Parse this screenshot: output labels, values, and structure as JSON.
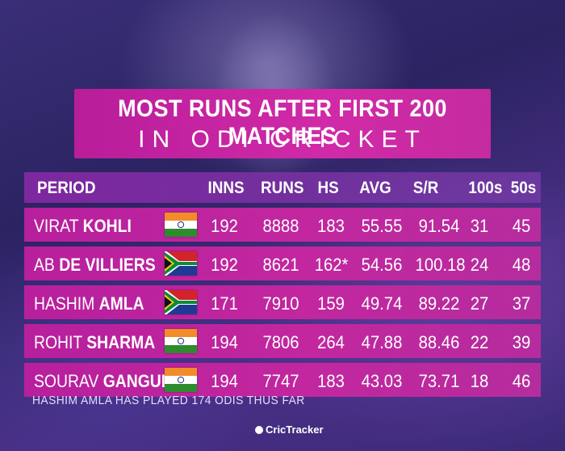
{
  "title": {
    "line1": "MOST RUNS AFTER FIRST 200 MATCHES",
    "line2": "IN ODI CRICKET"
  },
  "columns": [
    "PERIOD",
    "INNS",
    "RUNS",
    "HS",
    "AVG",
    "S/R",
    "100s",
    "50s"
  ],
  "rows": [
    {
      "first": "VIRAT",
      "last": "KOHLI",
      "flag": "india",
      "inns": "192",
      "runs": "8888",
      "hs": "183",
      "avg": "55.55",
      "sr": "91.54",
      "hundreds": "31",
      "fifties": "45"
    },
    {
      "first": "AB",
      "last": "DE VILLIERS",
      "flag": "south-africa",
      "inns": "192",
      "runs": "8621",
      "hs": "162*",
      "avg": "54.56",
      "sr": "100.18",
      "hundreds": "24",
      "fifties": "48"
    },
    {
      "first": "HASHIM",
      "last": "AMLA",
      "flag": "south-africa",
      "inns": "171",
      "runs": "7910",
      "hs": "159",
      "avg": "49.74",
      "sr": "89.22",
      "hundreds": "27",
      "fifties": "37"
    },
    {
      "first": "ROHIT",
      "last": "SHARMA",
      "flag": "india",
      "inns": "194",
      "runs": "7806",
      "hs": "264",
      "avg": "47.88",
      "sr": "88.46",
      "hundreds": "22",
      "fifties": "39"
    },
    {
      "first": "SOURAV",
      "last": "GANGULY",
      "flag": "india",
      "inns": "194",
      "runs": "7747",
      "hs": "183",
      "avg": "43.03",
      "sr": "73.71",
      "hundreds": "18",
      "fifties": "46"
    }
  ],
  "footnote": "HASHIM AMLA HAS PLAYED 174 ODIS THUS FAR",
  "brand": "CricTracker",
  "colors": {
    "row_bg": "#c2279f",
    "title_bg": "#d12aa8",
    "header_bg": "#8c28aa"
  }
}
